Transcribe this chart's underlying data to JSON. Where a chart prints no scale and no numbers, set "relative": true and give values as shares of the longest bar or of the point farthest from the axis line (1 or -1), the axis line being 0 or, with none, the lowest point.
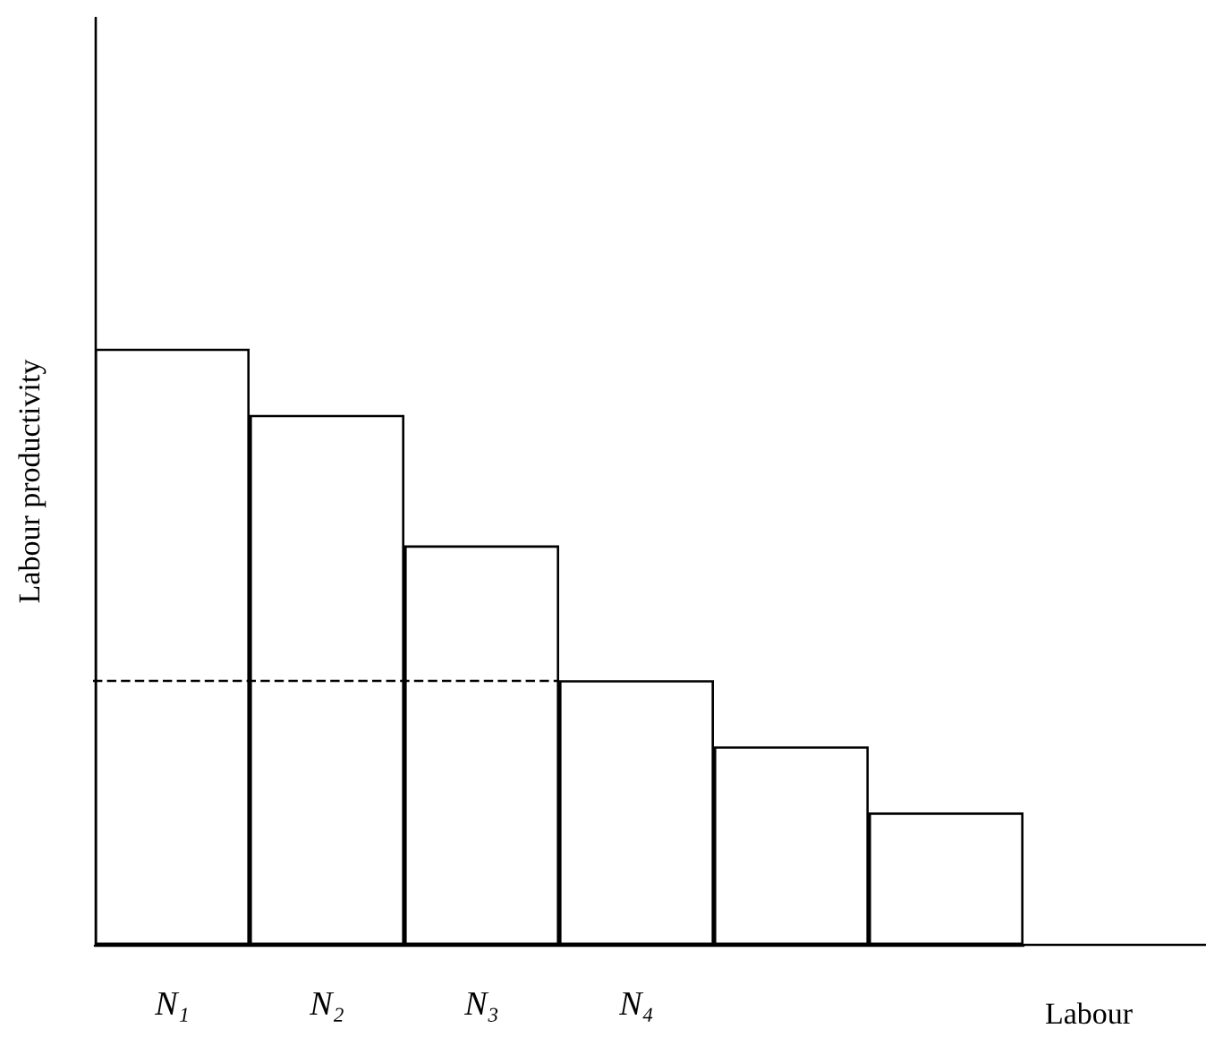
{
  "chart_data": {
    "type": "bar",
    "relative": true,
    "xlabel": "Labour",
    "ylabel": "Labour productivity",
    "categories": [
      "N₁",
      "N₂",
      "N₃",
      "N₄",
      null,
      null
    ],
    "values": [
      1,
      0.889,
      0.67,
      0.444,
      0.333,
      0.222
    ],
    "color": "#ffffff",
    "ref_lines": [
      {
        "axis": "y",
        "value": 0.444,
        "line_style": "dashed",
        "color": "#000000"
      }
    ],
    "grid": false
  }
}
